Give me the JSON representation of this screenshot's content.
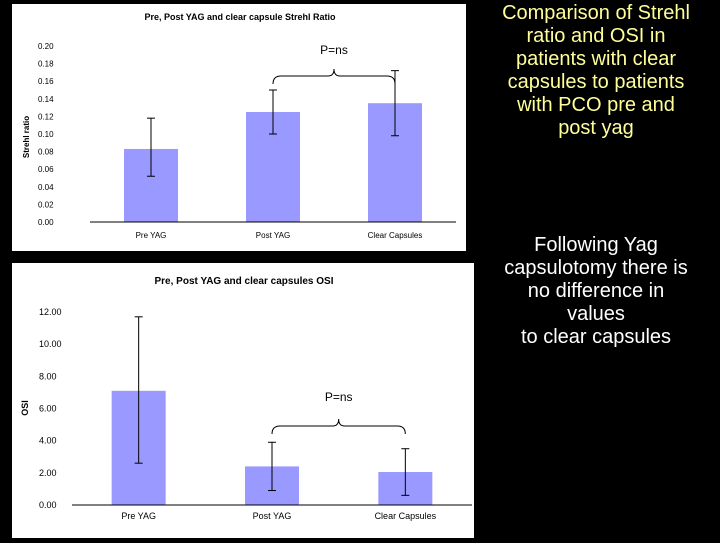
{
  "slide": {
    "comparison_lines": [
      "Comparison of Strehl",
      "ratio and OSI in",
      "patients with clear",
      "capsules to patients",
      "with PCO pre and",
      "post yag"
    ],
    "conclusion_lines": [
      "Following Yag",
      "capsulotomy there is",
      "no difference in",
      "values",
      "to clear capsules"
    ]
  },
  "colors": {
    "bar": "#9999ff",
    "background": "#000000",
    "yellow_text": "#ffff99",
    "panel": "#ffffff"
  },
  "chart_data": [
    {
      "type": "bar",
      "title": "Pre, Post YAG and clear capsule Strehl Ratio",
      "ylabel": "Strehl ratio",
      "xlabel": "",
      "categories": [
        "Pre YAG",
        "Post YAG",
        "Clear Capsules"
      ],
      "values": [
        0.083,
        0.125,
        0.135
      ],
      "error_low": [
        0.052,
        0.1,
        0.098
      ],
      "error_high": [
        0.118,
        0.15,
        0.172
      ],
      "ylim": [
        0,
        0.2
      ],
      "yticks": [
        "0.00",
        "0.02",
        "0.04",
        "0.06",
        "0.08",
        "0.10",
        "0.12",
        "0.14",
        "0.16",
        "0.18",
        "0.20"
      ],
      "annotation": {
        "text": "P=ns",
        "between": [
          1,
          2
        ]
      },
      "grid": false,
      "legend": "none"
    },
    {
      "type": "bar",
      "title": "Pre, Post YAG and clear capsules OSI",
      "ylabel": "OSI",
      "xlabel": "",
      "categories": [
        "Pre YAG",
        "Post YAG",
        "Clear Capsules"
      ],
      "values": [
        7.1,
        2.4,
        2.05
      ],
      "error_low": [
        2.6,
        0.9,
        0.6
      ],
      "error_high": [
        11.7,
        3.9,
        3.5
      ],
      "ylim": [
        0,
        12
      ],
      "yticks": [
        "0.00",
        "2.00",
        "4.00",
        "6.00",
        "8.00",
        "10.00",
        "12.00"
      ],
      "annotation": {
        "text": "P=ns",
        "between": [
          1,
          2
        ]
      },
      "grid": false,
      "legend": "none"
    }
  ]
}
